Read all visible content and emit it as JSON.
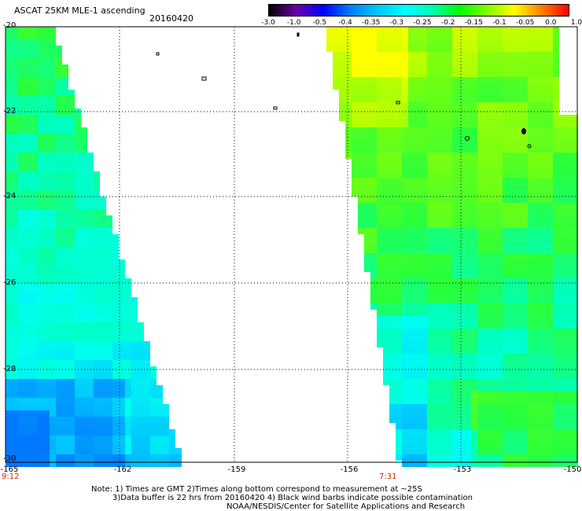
{
  "header": {
    "title": "ASCAT 25KM MLE-1 ascending",
    "date": "20160420"
  },
  "colorbar": {
    "labels": [
      "-3.0",
      "-1.0",
      "-0.5",
      "-0.4",
      "-0.35",
      "-0.3",
      "-0.25",
      "-0.2",
      "-0.15",
      "-0.1",
      "-0.05",
      "0.0",
      "1.0"
    ],
    "colors": [
      "#000000",
      "#6a00a8",
      "#0000ff",
      "#0080ff",
      "#00c8ff",
      "#00ffff",
      "#00ffb0",
      "#00ff00",
      "#80ff00",
      "#ffff00",
      "#ff8000",
      "#ff0000"
    ]
  },
  "map": {
    "lat_labels": [
      "-20",
      "-22",
      "-24",
      "-26",
      "-28",
      "-30"
    ],
    "lon_labels": [
      "-165",
      "-162",
      "-159",
      "-156",
      "-153",
      "-150"
    ],
    "times": [
      "9:12",
      "7:31"
    ]
  },
  "notes": {
    "line1": "Note: 1) Times are GMT 2)Times along bottom correspond to measurement at ~25S",
    "line2": "3)Data buffer is 22 hrs from 20160420 4) Black wind barbs indicate possible contamination",
    "line3": "NOAA/NESDIS/Center for Satellite Applications and Research"
  }
}
